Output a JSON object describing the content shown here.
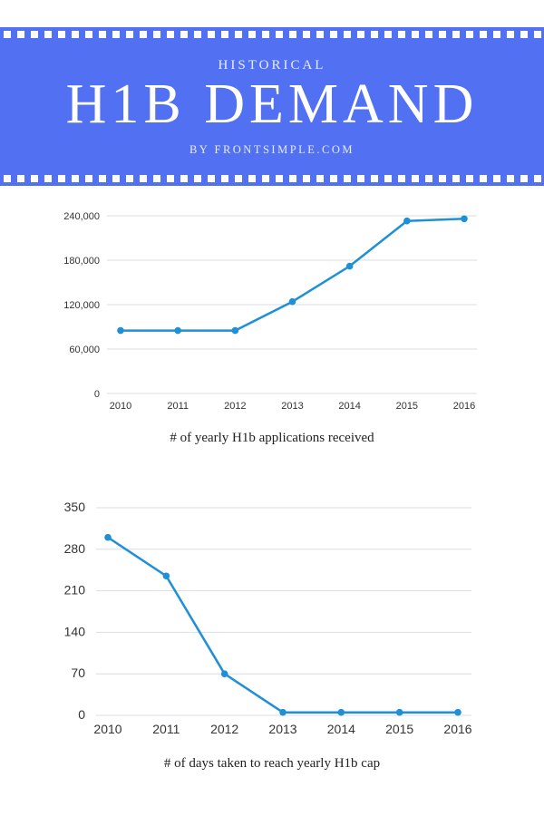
{
  "banner": {
    "subtitle": "HISTORICAL",
    "title": "H1B DEMAND",
    "byline": "BY FRONTSIMPLE.COM",
    "color": "#5270f2"
  },
  "chart_data": [
    {
      "type": "line",
      "title": "",
      "caption": "# of yearly H1b applications received",
      "x": [
        "2010",
        "2011",
        "2012",
        "2013",
        "2014",
        "2015",
        "2016"
      ],
      "y_ticks": [
        "0",
        "60,000",
        "120,000",
        "180,000",
        "240,000"
      ],
      "y_tick_values": [
        0,
        60000,
        120000,
        180000,
        240000
      ],
      "ylim": [
        0,
        240000
      ],
      "grid": true,
      "color": "#1f8fd6",
      "series": [
        {
          "values": [
            85000,
            85000,
            85000,
            124000,
            172000,
            233000,
            236000
          ]
        }
      ]
    },
    {
      "type": "line",
      "title": "",
      "caption": "# of days taken to reach yearly H1b cap",
      "x": [
        "2010",
        "2011",
        "2012",
        "2013",
        "2014",
        "2015",
        "2016"
      ],
      "y_ticks": [
        "0",
        "70",
        "140",
        "210",
        "280",
        "350"
      ],
      "y_tick_values": [
        0,
        70,
        140,
        210,
        280,
        350
      ],
      "ylim": [
        0,
        350
      ],
      "grid": true,
      "color": "#1f8fd6",
      "series": [
        {
          "values": [
            300,
            235,
            70,
            5,
            5,
            5,
            5
          ]
        }
      ]
    }
  ]
}
